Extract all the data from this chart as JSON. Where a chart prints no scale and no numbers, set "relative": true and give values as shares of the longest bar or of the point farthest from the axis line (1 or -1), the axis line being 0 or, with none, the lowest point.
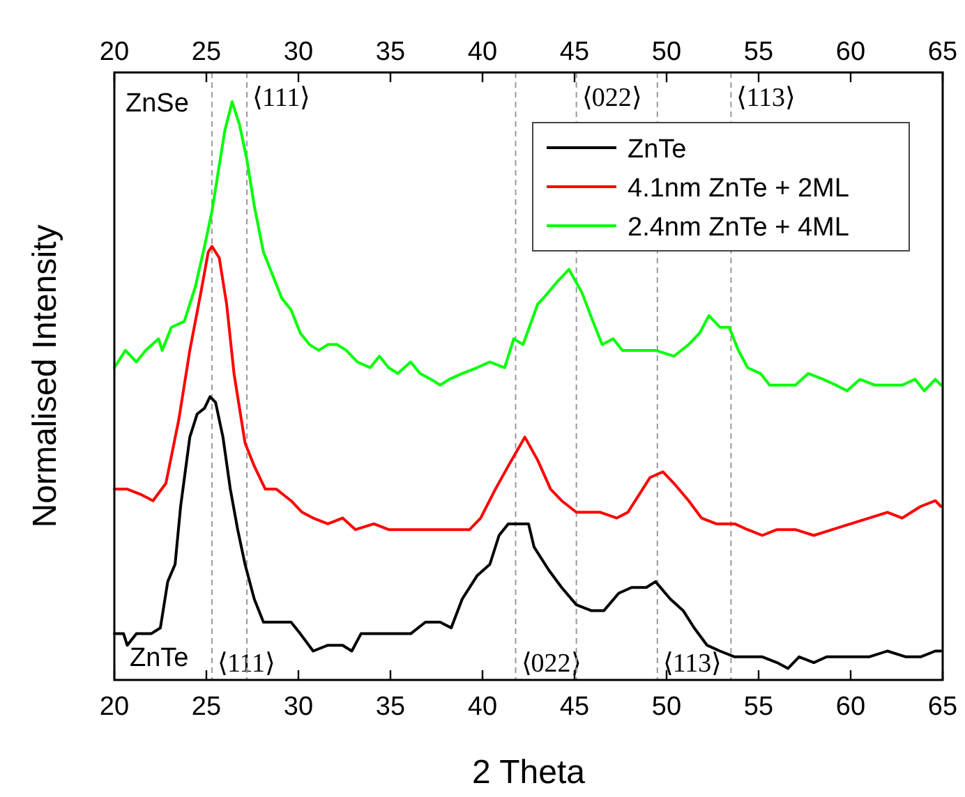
{
  "chart_data": {
    "type": "line",
    "relative": true,
    "xlabel": "2 Theta",
    "ylabel": "Normalised Intensity",
    "xlim": [
      20,
      65
    ],
    "xticks": [
      20,
      25,
      30,
      35,
      40,
      45,
      50,
      55,
      60,
      65
    ],
    "x2lim": [
      20,
      65
    ],
    "x2ticks": [
      20,
      25,
      30,
      35,
      40,
      45,
      50,
      55,
      60,
      65
    ],
    "legend": "top right",
    "grid": false,
    "marker": "none",
    "line_style": "solid",
    "series": [
      {
        "name": "ZnTe",
        "color": "#000000",
        "x": [
          20.0,
          20.5,
          20.7,
          21.2,
          22.0,
          22.5,
          22.9,
          23.3,
          23.6,
          24.1,
          24.5,
          24.9,
          25.2,
          25.5,
          25.9,
          26.3,
          26.7,
          27.1,
          27.6,
          28.1,
          28.6,
          29.1,
          29.6,
          30.1,
          30.8,
          31.6,
          32.4,
          32.9,
          33.4,
          34.1,
          35.1,
          36.1,
          36.9,
          37.7,
          38.3,
          38.9,
          39.7,
          40.4,
          40.9,
          41.4,
          41.9,
          42.5,
          42.8,
          43.6,
          44.3,
          45.1,
          45.9,
          46.6,
          47.4,
          48.1,
          48.9,
          49.4,
          50.2,
          50.9,
          51.5,
          52.2,
          52.9,
          53.7,
          54.4,
          55.2,
          56.0,
          56.6,
          57.2,
          58.0,
          58.7,
          59.5,
          60.3,
          61.0,
          62.0,
          63.0,
          63.8,
          64.6,
          64.9
        ],
        "values": [
          0.08,
          0.08,
          0.06,
          0.08,
          0.08,
          0.09,
          0.17,
          0.2,
          0.3,
          0.42,
          0.46,
          0.47,
          0.49,
          0.48,
          0.42,
          0.33,
          0.26,
          0.2,
          0.14,
          0.1,
          0.1,
          0.1,
          0.1,
          0.08,
          0.05,
          0.06,
          0.06,
          0.05,
          0.08,
          0.08,
          0.08,
          0.08,
          0.1,
          0.1,
          0.09,
          0.14,
          0.18,
          0.2,
          0.25,
          0.27,
          0.27,
          0.27,
          0.23,
          0.19,
          0.16,
          0.13,
          0.12,
          0.12,
          0.15,
          0.16,
          0.16,
          0.17,
          0.14,
          0.12,
          0.09,
          0.06,
          0.05,
          0.04,
          0.04,
          0.04,
          0.03,
          0.02,
          0.04,
          0.03,
          0.04,
          0.04,
          0.04,
          0.04,
          0.05,
          0.04,
          0.04,
          0.05,
          0.05
        ]
      },
      {
        "name": "4.1nm ZnTe + 2ML",
        "color": "#ff0000",
        "x": [
          20.0,
          20.7,
          21.5,
          22.1,
          22.8,
          23.5,
          24.1,
          24.7,
          25.1,
          25.3,
          25.7,
          26.1,
          26.5,
          27.1,
          27.6,
          28.2,
          28.8,
          29.6,
          30.2,
          30.8,
          31.6,
          32.4,
          33.1,
          34.1,
          34.9,
          35.9,
          37.2,
          38.4,
          39.3,
          39.9,
          40.7,
          41.4,
          42.3,
          43.0,
          43.7,
          44.3,
          45.1,
          45.6,
          46.4,
          47.3,
          47.9,
          48.5,
          49.1,
          49.8,
          50.4,
          51.2,
          51.9,
          52.7,
          53.7,
          54.4,
          55.2,
          56.0,
          57.0,
          58.0,
          59.0,
          60.0,
          61.0,
          62.0,
          62.8,
          63.3,
          63.8,
          64.6,
          64.9
        ],
        "values": [
          0.33,
          0.33,
          0.32,
          0.31,
          0.34,
          0.45,
          0.57,
          0.67,
          0.74,
          0.75,
          0.73,
          0.65,
          0.53,
          0.41,
          0.37,
          0.33,
          0.33,
          0.31,
          0.29,
          0.28,
          0.27,
          0.28,
          0.26,
          0.27,
          0.26,
          0.26,
          0.26,
          0.26,
          0.26,
          0.28,
          0.33,
          0.37,
          0.42,
          0.38,
          0.33,
          0.31,
          0.29,
          0.29,
          0.29,
          0.28,
          0.29,
          0.32,
          0.35,
          0.36,
          0.34,
          0.31,
          0.28,
          0.27,
          0.27,
          0.26,
          0.25,
          0.26,
          0.26,
          0.25,
          0.26,
          0.27,
          0.28,
          0.29,
          0.28,
          0.29,
          0.3,
          0.31,
          0.3
        ]
      },
      {
        "name": "2.4nm ZnTe + 4ML",
        "color": "#00ff00",
        "x": [
          20.0,
          20.6,
          21.2,
          21.7,
          22.4,
          22.6,
          23.1,
          23.8,
          24.4,
          24.9,
          25.3,
          25.7,
          26.0,
          26.4,
          26.8,
          27.2,
          27.6,
          28.1,
          28.6,
          29.1,
          29.6,
          30.1,
          30.6,
          31.1,
          31.6,
          32.1,
          32.6,
          33.2,
          33.9,
          34.4,
          34.9,
          35.4,
          36.1,
          36.6,
          37.2,
          37.7,
          38.2,
          38.9,
          39.7,
          40.4,
          41.2,
          41.7,
          42.2,
          43.0,
          43.3,
          44.1,
          44.7,
          45.4,
          46.0,
          46.5,
          47.1,
          47.6,
          48.4,
          49.4,
          50.4,
          51.2,
          51.8,
          52.3,
          52.9,
          53.4,
          53.9,
          54.4,
          55.1,
          55.6,
          56.2,
          57.0,
          57.7,
          58.5,
          59.2,
          59.8,
          60.5,
          61.3,
          62.0,
          62.8,
          63.5,
          64.0,
          64.6,
          64.9
        ],
        "values": [
          0.54,
          0.57,
          0.55,
          0.57,
          0.59,
          0.57,
          0.61,
          0.62,
          0.68,
          0.75,
          0.81,
          0.89,
          0.95,
          1.0,
          0.96,
          0.9,
          0.82,
          0.74,
          0.7,
          0.66,
          0.64,
          0.6,
          0.58,
          0.57,
          0.58,
          0.58,
          0.57,
          0.55,
          0.54,
          0.56,
          0.54,
          0.53,
          0.55,
          0.53,
          0.52,
          0.51,
          0.52,
          0.53,
          0.54,
          0.55,
          0.54,
          0.59,
          0.58,
          0.65,
          0.66,
          0.69,
          0.71,
          0.67,
          0.62,
          0.58,
          0.59,
          0.57,
          0.57,
          0.57,
          0.56,
          0.58,
          0.6,
          0.63,
          0.61,
          0.61,
          0.57,
          0.54,
          0.53,
          0.51,
          0.51,
          0.51,
          0.53,
          0.52,
          0.51,
          0.5,
          0.52,
          0.51,
          0.51,
          0.51,
          0.52,
          0.5,
          0.52,
          0.51
        ]
      }
    ],
    "ref_lines": [
      {
        "axis": "x",
        "value": 25.3,
        "label": "⟨111⟩",
        "color": "#999999",
        "line_style": "dashed"
      },
      {
        "axis": "x",
        "value": 27.2,
        "label": "⟨111⟩",
        "color": "#999999",
        "line_style": "dashed"
      },
      {
        "axis": "x",
        "value": 41.8,
        "label": "⟨022⟩",
        "color": "#999999",
        "line_style": "dashed"
      },
      {
        "axis": "x",
        "value": 45.1,
        "label": "⟨022⟩",
        "color": "#999999",
        "line_style": "dashed"
      },
      {
        "axis": "x",
        "value": 49.5,
        "label": "⟨113⟩",
        "color": "#999999",
        "line_style": "dashed"
      },
      {
        "axis": "x",
        "value": 53.5,
        "label": "⟨113⟩",
        "color": "#999999",
        "line_style": "dashed"
      }
    ],
    "annotations": [
      "ZnSe",
      "ZnTe"
    ]
  }
}
